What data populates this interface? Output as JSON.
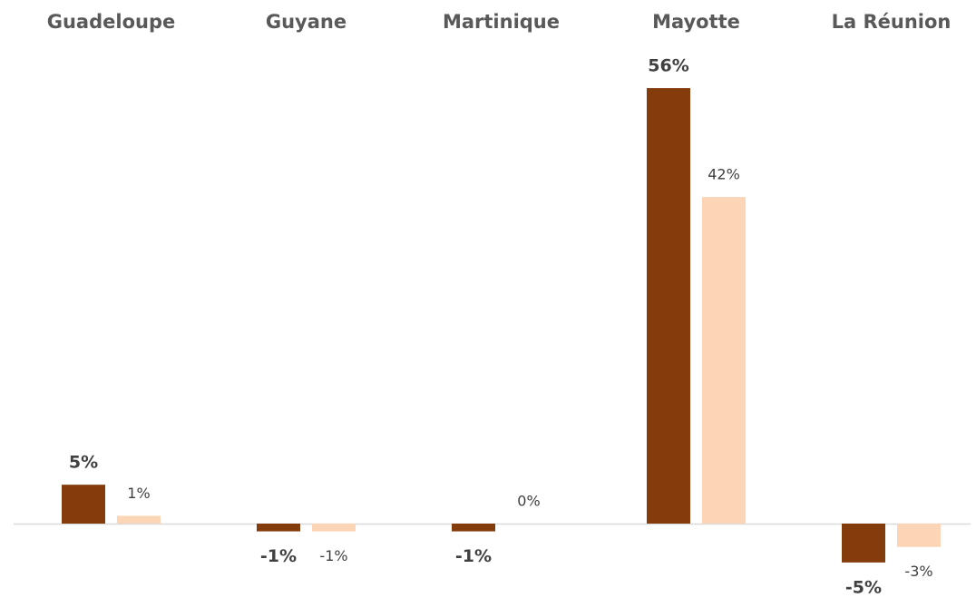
{
  "chart_data": {
    "type": "bar",
    "categories": [
      "Guadeloupe",
      "Guyane",
      "Martinique",
      "Mayotte",
      "La Réunion"
    ],
    "series": [
      {
        "color": "#843c0c",
        "values": [
          5,
          -1,
          -1,
          56,
          -5
        ],
        "value_labels": [
          "5%",
          "-1%",
          "-1%",
          "56%",
          "-5%"
        ]
      },
      {
        "color": "#fbd5b5",
        "values": [
          1,
          -1,
          0,
          42,
          -3
        ],
        "value_labels": [
          "1%",
          "-1%",
          "0%",
          "42%",
          "-3%"
        ]
      }
    ]
  }
}
